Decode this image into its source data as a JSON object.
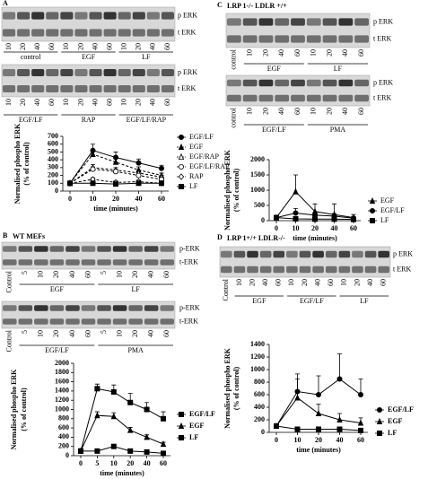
{
  "panels": [
    {
      "label": "A",
      "blots": [
        {
          "labels": [
            "p ERK",
            "t ERK"
          ],
          "lanes": [
            "10",
            "20",
            "40",
            "60",
            "10",
            "20",
            "40",
            "60",
            "10",
            "20",
            "40",
            "60"
          ],
          "groups": [
            "control",
            "EGF",
            "LF"
          ]
        },
        {
          "labels": [
            "p ERK",
            "t ERK"
          ],
          "lanes": [
            "10",
            "20",
            "40",
            "60",
            "10",
            "20",
            "40",
            "60",
            "10",
            "20",
            "40",
            "60"
          ],
          "groups": [
            "EGF/LF",
            "RAP",
            "EGF/LF/RAP"
          ]
        }
      ]
    },
    {
      "label": "B",
      "title": "WT MEFs",
      "blots": [
        {
          "labels": [
            "p-ERK",
            "t-ERK"
          ],
          "lanes": [
            "Control",
            "5",
            "10",
            "20",
            "40",
            "60",
            "5",
            "10",
            "20",
            "40",
            "60"
          ],
          "groups": [
            "EGF",
            "LF"
          ]
        },
        {
          "labels": [
            "p-ERK",
            "t-ERK"
          ],
          "lanes": [
            "Control",
            "5",
            "10",
            "20",
            "40",
            "60",
            "5",
            "10",
            "20",
            "40",
            "60"
          ],
          "groups": [
            "EGF/LF",
            "PMA"
          ]
        }
      ]
    },
    {
      "label": "C",
      "title": "LRP 1-/- LDLR +/+",
      "blots": [
        {
          "labels": [
            "p ERK",
            "t ERK"
          ],
          "lanes": [
            "control",
            "10",
            "20",
            "40",
            "60",
            "10",
            "20",
            "40",
            "60"
          ],
          "groups": [
            "EGF",
            "LF"
          ]
        },
        {
          "labels": [
            "p ERK",
            "t ERK"
          ],
          "lanes": [
            "control",
            "10",
            "20",
            "40",
            "60",
            "10",
            "20",
            "40",
            "60"
          ],
          "groups": [
            "EGF/LF",
            "PMA"
          ]
        }
      ]
    },
    {
      "label": "D",
      "title": "LRP 1+/+ LDLR-/-",
      "blots": [
        {
          "labels": [
            "p ERK",
            "t ERK"
          ],
          "lanes": [
            "Control",
            "10",
            "20",
            "40",
            "60",
            "10",
            "20",
            "40",
            "60",
            "10",
            "20",
            "40",
            "60"
          ],
          "groups": [
            "EGF",
            "EGF/LF",
            "LF"
          ]
        }
      ]
    }
  ],
  "chart_data": [
    {
      "type": "line",
      "categories": [
        "0",
        "10",
        "20",
        "40",
        "60"
      ],
      "xlabel": "time (minutes)",
      "ylabel": [
        "Normalised phospho ERK",
        "(% of control)"
      ],
      "ylim": [
        0,
        700
      ],
      "yticks": [
        0,
        100,
        200,
        300,
        400,
        500,
        600,
        700
      ],
      "series": [
        {
          "name": "EGF/LF",
          "color": "#000000",
          "marker": "circle",
          "dash": false,
          "values": [
            100,
            520,
            430,
            360,
            290
          ],
          "errors": [
            0,
            80,
            70,
            50,
            40
          ]
        },
        {
          "name": "EGF",
          "color": "#000000",
          "marker": "triangle",
          "dash": true,
          "values": [
            100,
            470,
            370,
            270,
            200
          ],
          "errors": [
            0,
            60,
            60,
            40,
            30
          ]
        },
        {
          "name": "EGF/RAP",
          "color": "#000000",
          "marker": "triangle-open",
          "dash": true,
          "values": [
            100,
            300,
            270,
            230,
            180
          ],
          "errors": [
            0,
            40,
            30,
            30,
            20
          ]
        },
        {
          "name": "EGF/LF/RAP",
          "color": "#000000",
          "marker": "circle-open",
          "dash": true,
          "values": [
            100,
            280,
            250,
            200,
            150
          ],
          "errors": [
            0,
            30,
            30,
            20,
            20
          ]
        },
        {
          "name": "RAP",
          "color": "#000000",
          "marker": "diamond-open",
          "dash": true,
          "values": [
            100,
            150,
            110,
            120,
            100
          ],
          "errors": [
            0,
            20,
            20,
            20,
            10
          ]
        },
        {
          "name": "LF",
          "color": "#000000",
          "marker": "square",
          "dash": false,
          "values": [
            100,
            100,
            90,
            100,
            100
          ],
          "errors": [
            0,
            10,
            10,
            10,
            10
          ]
        }
      ]
    },
    {
      "type": "line",
      "categories": [
        "0",
        "5",
        "10",
        "20",
        "40",
        "60"
      ],
      "xlabel": "time (minutes)",
      "ylabel": [
        "Normalised phospho ERK",
        "(% of control)"
      ],
      "ylim": [
        0,
        2000
      ],
      "yticks": [
        0,
        200,
        400,
        600,
        800,
        1000,
        1200,
        1400,
        1600,
        1800,
        2000
      ],
      "series": [
        {
          "name": "EGF/LF",
          "color": "#000000",
          "marker": "square",
          "dash": false,
          "values": [
            100,
            1450,
            1380,
            1150,
            1000,
            800
          ],
          "errors": [
            0,
            100,
            150,
            200,
            150,
            150
          ]
        },
        {
          "name": "EGF",
          "color": "#000000",
          "marker": "triangle",
          "dash": false,
          "values": [
            100,
            870,
            850,
            550,
            400,
            250
          ],
          "errors": [
            0,
            80,
            80,
            60,
            50,
            40
          ]
        },
        {
          "name": "LF",
          "color": "#000000",
          "marker": "square",
          "dash": false,
          "values": [
            100,
            100,
            200,
            100,
            80,
            50
          ],
          "errors": [
            0,
            20,
            30,
            20,
            10,
            10
          ]
        }
      ]
    },
    {
      "type": "line",
      "categories": [
        "0",
        "10",
        "20",
        "40",
        "60"
      ],
      "xlabel": "time (minutes)",
      "ylabel": [
        "Normalised phospho ERK",
        "(% of control)"
      ],
      "ylim": [
        0,
        2000
      ],
      "yticks": [
        0,
        500,
        1000,
        1500,
        2000
      ],
      "series": [
        {
          "name": "EGF",
          "color": "#000000",
          "marker": "triangle",
          "dash": false,
          "values": [
            100,
            950,
            300,
            200,
            100
          ],
          "errors": [
            0,
            550,
            250,
            350,
            100
          ]
        },
        {
          "name": "EGF/LF",
          "color": "#000000",
          "marker": "circle",
          "dash": false,
          "values": [
            100,
            250,
            180,
            150,
            80
          ],
          "errors": [
            0,
            150,
            100,
            80,
            50
          ]
        },
        {
          "name": "LF",
          "color": "#000000",
          "marker": "square",
          "dash": false,
          "values": [
            100,
            60,
            50,
            50,
            40
          ],
          "errors": [
            0,
            30,
            20,
            20,
            10
          ]
        }
      ]
    },
    {
      "type": "line",
      "categories": [
        "0",
        "10",
        "20",
        "40",
        "60"
      ],
      "xlabel": "time (minutes)",
      "ylabel": [
        "Normalised phospho ERK",
        "(% of control)"
      ],
      "ylim": [
        0,
        1400
      ],
      "yticks": [
        0,
        200,
        400,
        600,
        800,
        1000,
        1200,
        1400
      ],
      "series": [
        {
          "name": "EGF/LF",
          "color": "#000000",
          "marker": "circle",
          "dash": false,
          "values": [
            100,
            650,
            600,
            850,
            600
          ],
          "errors": [
            0,
            280,
            300,
            400,
            250
          ]
        },
        {
          "name": "EGF",
          "color": "#000000",
          "marker": "triangle",
          "dash": false,
          "values": [
            100,
            550,
            300,
            200,
            150
          ],
          "errors": [
            0,
            300,
            150,
            100,
            80
          ]
        },
        {
          "name": "LF",
          "color": "#000000",
          "marker": "square",
          "dash": false,
          "values": [
            100,
            50,
            50,
            50,
            30
          ],
          "errors": [
            0,
            30,
            20,
            20,
            10
          ]
        }
      ]
    }
  ]
}
